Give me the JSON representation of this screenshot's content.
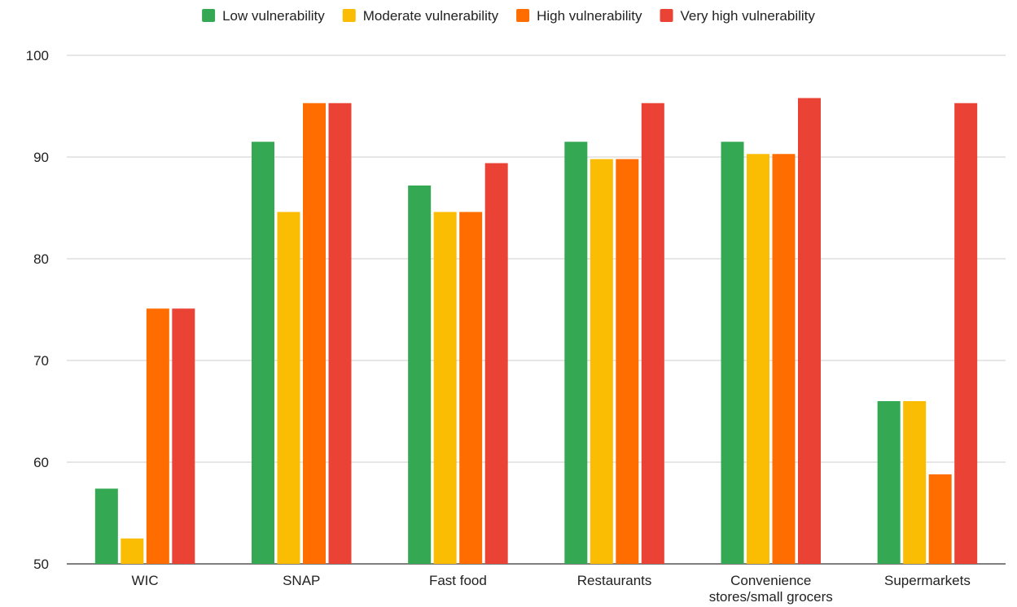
{
  "chart_data": {
    "type": "bar",
    "title": "",
    "xlabel": "",
    "ylabel": "",
    "ylim": [
      50,
      100
    ],
    "yticks": [
      50,
      60,
      70,
      80,
      90,
      100
    ],
    "grid": true,
    "legend_position": "top",
    "categories": [
      [
        "WIC"
      ],
      [
        "SNAP"
      ],
      [
        "Fast food"
      ],
      [
        "Restaurants"
      ],
      [
        "Convenience",
        "stores/small grocers"
      ],
      [
        "Supermarkets"
      ]
    ],
    "series": [
      {
        "name": "Low vulnerability",
        "color": "#34a853",
        "values": [
          57.4,
          91.5,
          87.2,
          91.5,
          91.5,
          66.0
        ]
      },
      {
        "name": "Moderate vulnerability",
        "color": "#fbbc04",
        "values": [
          52.5,
          84.6,
          84.6,
          89.8,
          90.3,
          66.0
        ]
      },
      {
        "name": "High vulnerability",
        "color": "#ff6d01",
        "values": [
          75.1,
          95.3,
          84.6,
          89.8,
          90.3,
          58.8
        ]
      },
      {
        "name": "Very high vulnerability",
        "color": "#ea4335",
        "values": [
          75.1,
          95.3,
          89.4,
          95.3,
          95.8,
          95.3
        ]
      }
    ]
  }
}
